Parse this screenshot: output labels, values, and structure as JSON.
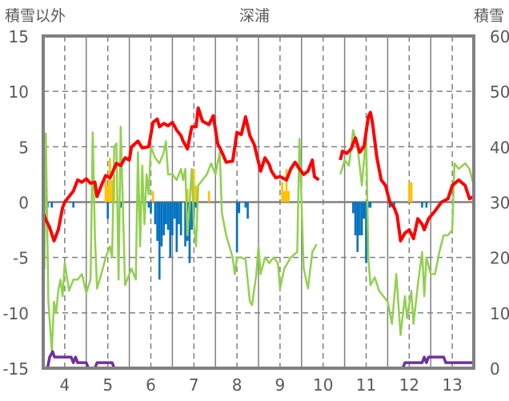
{
  "chart_data": {
    "type": "line",
    "title": "深浦",
    "ylabel_left": "積雪以外",
    "ylabel_right": "積雪",
    "xlim": [
      3.5,
      13.5
    ],
    "ylim_left": [
      -15,
      15
    ],
    "ylim_right": [
      0,
      60
    ],
    "x_ticks": [
      "4",
      "5",
      "6",
      "7",
      "8",
      "9",
      "10",
      "11",
      "12",
      "13"
    ],
    "y_ticks_left": [
      "15",
      "10",
      "5",
      "0",
      "-5",
      "-10",
      "-15"
    ],
    "y_ticks_right": [
      "60",
      "50",
      "40",
      "30",
      "20",
      "10",
      "0"
    ],
    "grid": true,
    "colors": {
      "red": "#ff0000",
      "green": "#92d050",
      "yellow": "#ffc000",
      "blue": "#0070c0",
      "purple": "#7030a0",
      "axis": "#808080"
    },
    "series": [
      {
        "name": "red",
        "axis": "left",
        "segments": [
          [
            [
              3.5,
              -1
            ],
            [
              3.55,
              -1.5
            ],
            [
              3.65,
              -2.3
            ],
            [
              3.75,
              -3.5
            ],
            [
              3.8,
              -3
            ],
            [
              3.85,
              -2.5
            ],
            [
              3.95,
              -0.5
            ],
            [
              4.0,
              0
            ],
            [
              4.1,
              0.5
            ],
            [
              4.2,
              1
            ],
            [
              4.3,
              2
            ],
            [
              4.4,
              1.8
            ],
            [
              4.5,
              2.1
            ],
            [
              4.6,
              1.7
            ],
            [
              4.7,
              1.8
            ],
            [
              4.75,
              0.5
            ],
            [
              4.85,
              1.5
            ],
            [
              4.95,
              2.4
            ],
            [
              5.05,
              2.2
            ],
            [
              5.1,
              2.6
            ],
            [
              5.2,
              3.5
            ],
            [
              5.3,
              3.3
            ],
            [
              5.4,
              4
            ],
            [
              5.5,
              3.8
            ],
            [
              5.55,
              5
            ],
            [
              5.7,
              5.5
            ],
            [
              5.8,
              4.9
            ],
            [
              5.95,
              5
            ],
            [
              6.05,
              7.2
            ],
            [
              6.15,
              7.5
            ],
            [
              6.2,
              6.8
            ],
            [
              6.3,
              7.1
            ],
            [
              6.4,
              6.9
            ],
            [
              6.5,
              7.2
            ],
            [
              6.6,
              6.5
            ],
            [
              6.7,
              6
            ],
            [
              6.75,
              5.5
            ],
            [
              6.85,
              4.8
            ],
            [
              6.95,
              6.8
            ],
            [
              7.05,
              6.8
            ],
            [
              7.1,
              8.5
            ],
            [
              7.2,
              7.3
            ],
            [
              7.35,
              7
            ],
            [
              7.45,
              7.8
            ],
            [
              7.55,
              5.3
            ],
            [
              7.65,
              4.5
            ],
            [
              7.75,
              3.6
            ],
            [
              7.9,
              3.7
            ],
            [
              8.0,
              6.3
            ],
            [
              8.1,
              6.1
            ],
            [
              8.2,
              7.7
            ],
            [
              8.3,
              6
            ],
            [
              8.4,
              5.2
            ],
            [
              8.55,
              2.8
            ],
            [
              8.65,
              4
            ],
            [
              8.75,
              3.4
            ],
            [
              8.8,
              2.8
            ],
            [
              8.9,
              2.2
            ],
            [
              9.0,
              2.3
            ],
            [
              9.15,
              2
            ],
            [
              9.25,
              3
            ],
            [
              9.35,
              3.6
            ],
            [
              9.45,
              3
            ],
            [
              9.55,
              2.5
            ],
            [
              9.65,
              2.8
            ],
            [
              9.75,
              3.8
            ],
            [
              9.8,
              2.3
            ],
            [
              9.9,
              2
            ]
          ],
          [
            [
              10.4,
              3.8
            ],
            [
              10.45,
              4.6
            ],
            [
              10.55,
              4.4
            ],
            [
              10.65,
              4.8
            ],
            [
              10.75,
              5.8
            ],
            [
              10.85,
              4.5
            ],
            [
              10.95,
              5
            ],
            [
              11.05,
              7.7
            ],
            [
              11.1,
              8.1
            ],
            [
              11.15,
              7.1
            ],
            [
              11.25,
              4
            ],
            [
              11.35,
              2
            ],
            [
              11.45,
              1.5
            ],
            [
              11.55,
              0
            ],
            [
              11.65,
              -0.5
            ],
            [
              11.72,
              -1.2
            ],
            [
              11.8,
              -3.5
            ],
            [
              11.9,
              -2.8
            ],
            [
              12.0,
              -2.5
            ],
            [
              12.1,
              -3.3
            ],
            [
              12.2,
              -1.5
            ],
            [
              12.3,
              -2
            ],
            [
              12.35,
              -2.5
            ],
            [
              12.45,
              -1.5
            ],
            [
              12.6,
              -0.8
            ],
            [
              12.75,
              0
            ],
            [
              12.9,
              0.3
            ],
            [
              13.0,
              1.5
            ],
            [
              13.15,
              2
            ],
            [
              13.3,
              1.5
            ],
            [
              13.4,
              0.3
            ],
            [
              13.5,
              0.5
            ]
          ]
        ]
      },
      {
        "name": "green",
        "axis": "left",
        "segments": [
          [
            [
              3.5,
              -5.5
            ],
            [
              3.53,
              -6
            ],
            [
              3.56,
              6.2
            ],
            [
              3.62,
              -9
            ],
            [
              3.7,
              -13.5
            ],
            [
              3.75,
              -9
            ],
            [
              3.8,
              -10
            ],
            [
              3.85,
              -8
            ],
            [
              3.9,
              -7
            ],
            [
              3.95,
              -8.5
            ],
            [
              4.0,
              -5.5
            ],
            [
              4.1,
              -8
            ],
            [
              4.2,
              -7
            ],
            [
              4.3,
              -7
            ],
            [
              4.4,
              -6.5
            ],
            [
              4.5,
              -8.2
            ],
            [
              4.6,
              -7
            ],
            [
              4.65,
              6.3
            ],
            [
              4.7,
              -3
            ],
            [
              4.75,
              -7.8
            ],
            [
              4.85,
              -6.5
            ],
            [
              4.95,
              -5
            ],
            [
              5.05,
              -4
            ],
            [
              5.1,
              -5
            ],
            [
              5.15,
              5
            ],
            [
              5.2,
              5.3
            ],
            [
              5.25,
              -7
            ],
            [
              5.3,
              6.8
            ],
            [
              5.4,
              -7.5
            ],
            [
              5.55,
              -6
            ],
            [
              5.65,
              -7
            ],
            [
              5.7,
              4.5
            ],
            [
              5.75,
              -4
            ],
            [
              5.8,
              3.3
            ],
            [
              5.85,
              -2
            ],
            [
              5.9,
              2.5
            ],
            [
              5.95,
              0.7
            ],
            [
              6.0,
              5
            ],
            [
              6.1,
              4
            ],
            [
              6.2,
              3.5
            ],
            [
              6.3,
              4.5
            ],
            [
              6.35,
              5.5
            ],
            [
              6.4,
              2.5
            ],
            [
              6.5,
              2.5
            ],
            [
              6.6,
              2
            ],
            [
              6.7,
              3
            ],
            [
              6.75,
              2
            ],
            [
              6.8,
              3
            ],
            [
              6.85,
              -3
            ],
            [
              6.95,
              3
            ],
            [
              7.0,
              -2
            ],
            [
              7.05,
              -4
            ],
            [
              7.1,
              1.5
            ],
            [
              7.2,
              2
            ],
            [
              7.3,
              2.5
            ],
            [
              7.4,
              3.5
            ],
            [
              7.5,
              2.5
            ],
            [
              7.6,
              4.5
            ],
            [
              7.65,
              -1
            ],
            [
              7.75,
              -3
            ],
            [
              7.9,
              -5
            ],
            [
              7.95,
              -6.5
            ],
            [
              8.0,
              -5
            ],
            [
              8.1,
              -5
            ],
            [
              8.2,
              -5.2
            ],
            [
              8.3,
              -9
            ],
            [
              8.35,
              -9.3
            ],
            [
              8.45,
              -6.5
            ],
            [
              8.5,
              -4
            ],
            [
              8.55,
              -6.5
            ],
            [
              8.65,
              -5
            ],
            [
              8.75,
              -5.5
            ],
            [
              8.85,
              -5
            ],
            [
              8.95,
              -5.5
            ],
            [
              9.0,
              -7.8
            ],
            [
              9.1,
              -6
            ],
            [
              9.25,
              -5
            ],
            [
              9.4,
              -4.5
            ],
            [
              9.45,
              5.7
            ],
            [
              9.55,
              -6
            ],
            [
              9.65,
              -7.8
            ],
            [
              9.75,
              -4.5
            ],
            [
              9.85,
              -3.8
            ]
          ],
          [
            [
              10.4,
              2.5
            ],
            [
              10.5,
              3.8
            ],
            [
              10.6,
              3.3
            ],
            [
              10.7,
              6.5
            ],
            [
              10.8,
              5
            ],
            [
              10.9,
              1.5
            ],
            [
              11.0,
              6
            ],
            [
              11.05,
              -5
            ],
            [
              11.1,
              -7.5
            ],
            [
              11.2,
              -6.8
            ],
            [
              11.3,
              -8
            ],
            [
              11.4,
              -8.5
            ],
            [
              11.5,
              -9
            ],
            [
              11.6,
              -11
            ],
            [
              11.7,
              -6.5
            ],
            [
              11.8,
              -12
            ],
            [
              11.9,
              -8.5
            ],
            [
              11.95,
              -10.5
            ],
            [
              12.05,
              -8
            ],
            [
              12.1,
              -11
            ],
            [
              12.2,
              -7.5
            ],
            [
              12.3,
              -4.5
            ],
            [
              12.35,
              -8.5
            ],
            [
              12.4,
              -5
            ],
            [
              12.5,
              -6.5
            ],
            [
              12.6,
              -6.5
            ],
            [
              12.7,
              -4.5
            ],
            [
              12.8,
              -3
            ],
            [
              12.9,
              -3
            ],
            [
              13.0,
              -2.5
            ],
            [
              13.05,
              3.5
            ],
            [
              13.15,
              3
            ],
            [
              13.3,
              3.5
            ],
            [
              13.4,
              3
            ],
            [
              13.5,
              1.5
            ]
          ]
        ]
      },
      {
        "name": "purple",
        "axis": "right",
        "segments": [
          [
            [
              3.5,
              0
            ],
            [
              3.6,
              0
            ],
            [
              3.65,
              2
            ],
            [
              3.72,
              3
            ],
            [
              3.76,
              2
            ],
            [
              4.15,
              2
            ],
            [
              4.2,
              1
            ],
            [
              4.25,
              2
            ],
            [
              4.3,
              1
            ],
            [
              4.5,
              1
            ],
            [
              4.55,
              0
            ],
            [
              4.7,
              0
            ],
            [
              4.75,
              1
            ],
            [
              5.1,
              1
            ],
            [
              5.15,
              0
            ],
            [
              9.85,
              0
            ]
          ],
          [
            [
              10.4,
              0
            ],
            [
              11.85,
              0
            ],
            [
              11.9,
              1
            ],
            [
              12.3,
              1
            ],
            [
              12.35,
              2
            ],
            [
              12.4,
              1
            ],
            [
              12.45,
              2
            ],
            [
              12.8,
              2
            ],
            [
              12.85,
              1
            ],
            [
              13.5,
              1
            ]
          ]
        ]
      }
    ],
    "bars_positive": {
      "name": "yellow",
      "x": [
        4.95,
        5.0,
        5.05,
        5.1,
        5.15,
        6.05,
        6.85,
        7.0,
        7.05,
        7.35,
        9.05,
        9.1,
        9.15,
        9.2,
        12.0,
        12.05
      ],
      "values": [
        2,
        1.5,
        4,
        2,
        2.5,
        1,
        1.2,
        3,
        1.5,
        1,
        1.8,
        1,
        3,
        1,
        1.8,
        1.8
      ]
    },
    "bars_negative": {
      "name": "blue",
      "x": [
        3.55,
        3.6,
        3.7,
        4.2,
        5.0,
        5.3,
        5.95,
        6.0,
        6.1,
        6.15,
        6.2,
        6.25,
        6.3,
        6.35,
        6.4,
        6.45,
        6.5,
        6.55,
        6.6,
        6.65,
        6.7,
        6.8,
        6.85,
        6.9,
        6.95,
        7.0,
        7.05,
        8.0,
        8.05,
        8.2,
        8.25,
        10.7,
        10.75,
        10.8,
        10.85,
        10.9,
        10.95,
        11.0,
        11.05,
        11.1,
        11.55,
        11.65,
        12.3,
        12.4
      ],
      "values": [
        -0.5,
        -0.5,
        -0.5,
        -0.5,
        -1.5,
        -0.5,
        -0.5,
        -1,
        -2,
        -3.5,
        -7,
        -4,
        -3,
        -2,
        -2.5,
        -5,
        -3,
        -1.5,
        -4.5,
        -2,
        -3,
        -4,
        -3.5,
        -5.5,
        -2.5,
        -1.5,
        -0.5,
        -4.5,
        -1,
        -0.5,
        -1.5,
        -1,
        -3,
        -4.5,
        -3,
        -3,
        -1.5,
        -5.5,
        -0.5,
        -0.5,
        -0.5,
        -0.5,
        -0.5,
        -0.5
      ]
    }
  }
}
